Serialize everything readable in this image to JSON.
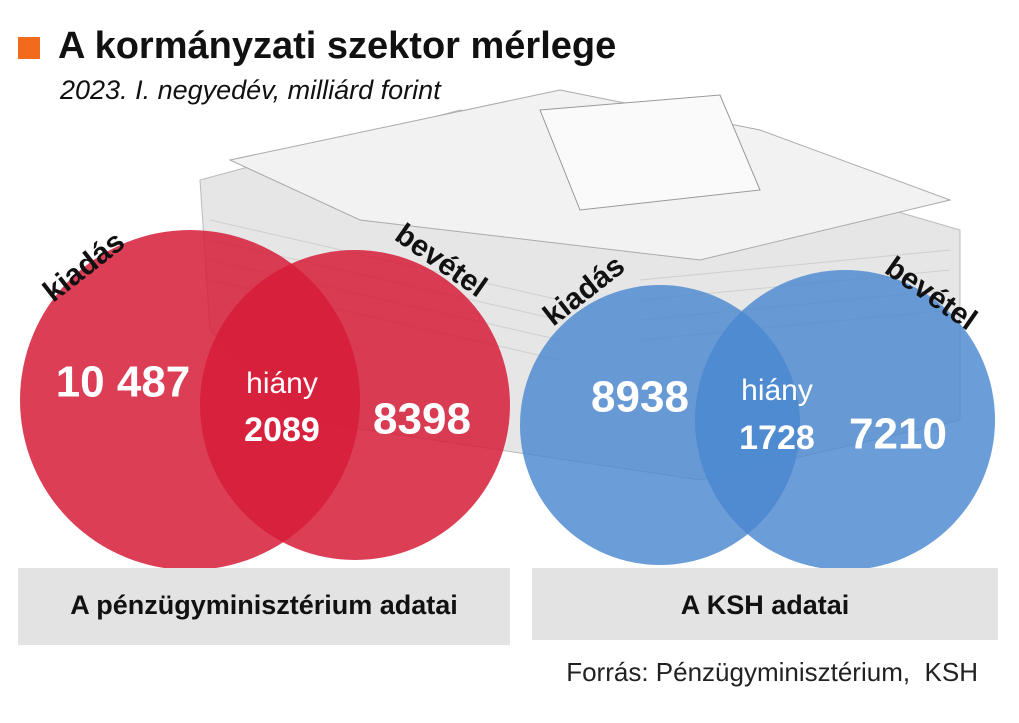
{
  "title": "A kormányzati szektor mérlege",
  "subtitle": "2023. I. negyedév, milliárd forint",
  "panels": [
    {
      "label": "A pénzügyminisztérium adatai",
      "left_label": "kiadás",
      "right_label": "bevétel",
      "left_value": "10 487",
      "center_label": "hiány",
      "center_value": "2089",
      "right_value": "8398"
    },
    {
      "label": "A KSH adatai",
      "left_label": "kiadás",
      "right_label": "bevétel",
      "left_value": "8938",
      "center_label": "hiány",
      "center_value": "1728",
      "right_value": "7210"
    }
  ],
  "source": "Forrás: Pénzügyminisztérium,  KSH"
}
